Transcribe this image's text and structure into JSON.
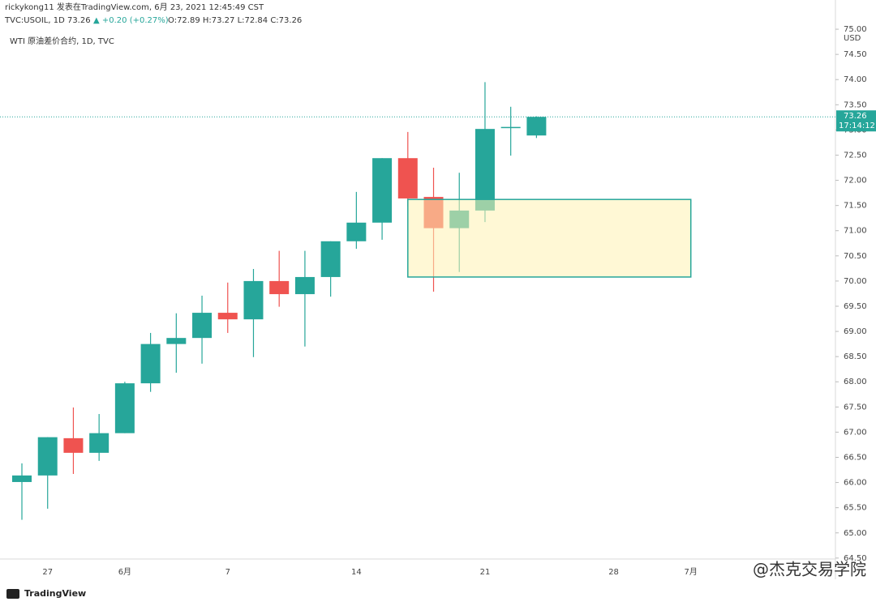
{
  "chart_data": {
    "type": "candlestick",
    "header": {
      "line1": "rickykong11 发表在TradingView.com, 6月 23, 2021 12:45:49 CST",
      "symbol": "TVC:USOIL, 1D 73.26",
      "change": "▲ +0.20 (+0.27%)",
      "ohlc": "O:72.89 H:73.27 L:72.84 C:73.26",
      "legend": "WTI 原油差价合约, 1D, TVC"
    },
    "currency": "USD",
    "categories": [
      null,
      "27",
      null,
      null,
      "6月",
      null,
      null,
      null,
      "7",
      null,
      null,
      null,
      null,
      "14",
      null,
      null,
      null,
      null,
      "21",
      null,
      null,
      null,
      null,
      "28",
      null,
      null,
      "7月"
    ],
    "open": [
      66.01,
      66.14,
      66.88,
      66.59,
      66.98,
      67.97,
      68.75,
      68.87,
      69.37,
      69.24,
      70.0,
      69.74,
      70.08,
      70.79,
      71.16,
      72.44,
      71.67,
      71.05,
      71.4,
      73.05,
      72.89,
      null,
      null,
      null,
      null,
      null,
      null
    ],
    "high": [
      66.38,
      66.9,
      67.49,
      67.36,
      68.0,
      68.97,
      69.36,
      69.71,
      69.97,
      70.24,
      70.6,
      70.6,
      70.79,
      71.77,
      72.44,
      72.96,
      72.25,
      72.15,
      73.95,
      73.46,
      73.27,
      null,
      null,
      null,
      null,
      null,
      null
    ],
    "low": [
      65.26,
      65.48,
      66.17,
      66.43,
      66.98,
      67.8,
      68.18,
      68.36,
      68.97,
      68.49,
      69.49,
      68.7,
      69.69,
      70.64,
      70.82,
      71.48,
      69.79,
      70.18,
      71.17,
      72.49,
      72.84,
      null,
      null,
      null,
      null,
      null,
      null
    ],
    "close": [
      66.14,
      66.9,
      66.59,
      66.98,
      67.97,
      68.75,
      68.87,
      69.37,
      69.24,
      70.0,
      69.74,
      70.08,
      70.79,
      71.16,
      72.44,
      71.64,
      71.05,
      71.4,
      73.02,
      73.06,
      73.26,
      null,
      null,
      null,
      null,
      null,
      null
    ],
    "up_color": "#26a69a",
    "down_color": "#ef5350",
    "zone": {
      "low": 70.08,
      "high": 71.62,
      "from": 15,
      "to": 26,
      "color": "#fff2b3",
      "border": "#26a69a"
    },
    "last_price": {
      "value": 73.26,
      "label": "73.26",
      "countdown": "17:14:12"
    },
    "ylim": [
      64.24,
      75.58
    ],
    "yticks": [
      {
        "value": 64.5,
        "label": "64.50"
      },
      {
        "value": 65,
        "label": "65.00"
      },
      {
        "value": 65.5,
        "label": "65.50"
      },
      {
        "value": 66,
        "label": "66.00"
      },
      {
        "value": 66.5,
        "label": "66.50"
      },
      {
        "value": 67,
        "label": "67.00"
      },
      {
        "value": 67.5,
        "label": "67.50"
      },
      {
        "value": 68,
        "label": "68.00"
      },
      {
        "value": 68.5,
        "label": "68.50"
      },
      {
        "value": 69,
        "label": "69.00"
      },
      {
        "value": 69.5,
        "label": "69.50"
      },
      {
        "value": 70,
        "label": "70.00"
      },
      {
        "value": 70.5,
        "label": "70.50"
      },
      {
        "value": 71,
        "label": "71.00"
      },
      {
        "value": 71.5,
        "label": "71.50"
      },
      {
        "value": 72,
        "label": "72.00"
      },
      {
        "value": 72.5,
        "label": "72.50"
      },
      {
        "value": 73,
        "label": "73.00"
      },
      {
        "value": 73.5,
        "label": "73.50"
      },
      {
        "value": 74,
        "label": "74.00"
      },
      {
        "value": 74.5,
        "label": "74.50"
      },
      {
        "value": 75,
        "label": "75.00"
      }
    ],
    "grid": false,
    "brand": "TradingView",
    "watermark": "@杰克交易学院"
  }
}
